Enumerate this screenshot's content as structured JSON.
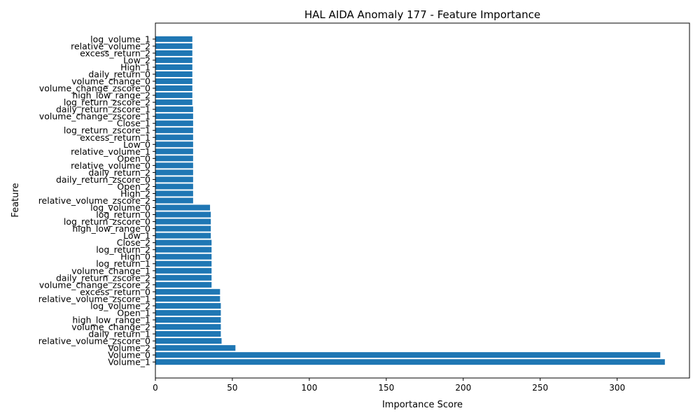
{
  "chart_data": {
    "type": "bar",
    "orientation": "horizontal",
    "title": "HAL AIDA Anomaly 177 - Feature Importance",
    "xlabel": "Importance Score",
    "ylabel": "Feature",
    "xlim": [
      0,
      347
    ],
    "xticks": [
      0,
      50,
      100,
      150,
      200,
      250,
      300
    ],
    "bar_color": "#1f77b4",
    "grid": false,
    "categories": [
      "Volume_1",
      "Volume_0",
      "Volume_2",
      "relative_volume_zscore_0",
      "daily_return_1",
      "volume_change_2",
      "high_low_range_1",
      "Open_1",
      "log_volume_2",
      "relative_volume_zscore_1",
      "excess_return_0",
      "volume_change_zscore_2",
      "daily_return_zscore_2",
      "volume_change_1",
      "log_return_1",
      "High_0",
      "log_return_2",
      "Close_2",
      "Low_1",
      "high_low_range_0",
      "log_return_zscore_0",
      "log_return_0",
      "log_volume_0",
      "relative_volume_zscore_2",
      "High_2",
      "Open_2",
      "daily_return_zscore_0",
      "daily_return_2",
      "relative_volume_0",
      "Open_0",
      "relative_volume_1",
      "Low_0",
      "excess_return_1",
      "log_return_zscore_1",
      "Close_1",
      "volume_change_zscore_1",
      "daily_return_zscore_1",
      "log_return_zscore_2",
      "high_low_range_2",
      "volume_change_zscore_0",
      "volume_change_0",
      "daily_return_0",
      "High_1",
      "Low_2",
      "excess_return_2",
      "relative_volume_2",
      "log_volume_1"
    ],
    "values": [
      331,
      328,
      52,
      43,
      42.5,
      42.5,
      42.5,
      42.5,
      42.5,
      42,
      42,
      36.5,
      36.5,
      36.5,
      36.5,
      36.5,
      36.5,
      36.5,
      36,
      36,
      36,
      36,
      35.5,
      24.5,
      24.5,
      24.5,
      24.5,
      24.5,
      24.5,
      24.5,
      24.5,
      24.5,
      24.5,
      24.5,
      24.5,
      24.5,
      24.5,
      24,
      24,
      24,
      24,
      24,
      24,
      24,
      24,
      24,
      24
    ]
  }
}
